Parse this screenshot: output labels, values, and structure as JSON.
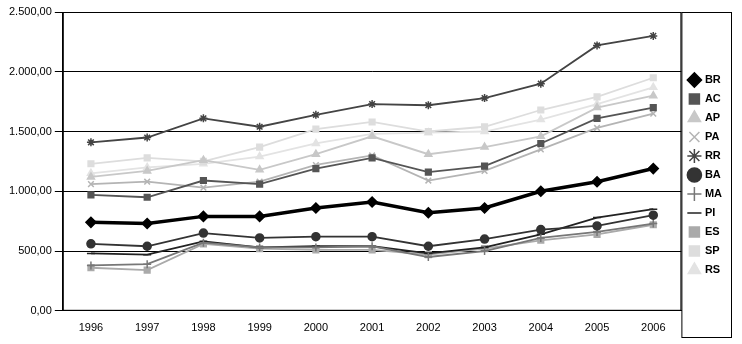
{
  "chart_data": {
    "type": "line",
    "categories": [
      "1996",
      "1997",
      "1998",
      "1999",
      "2000",
      "2001",
      "2002",
      "2003",
      "2004",
      "2005",
      "2006"
    ],
    "series": [
      {
        "name": "BR",
        "color": "#000000",
        "marker": "diamond",
        "values": [
          740,
          730,
          790,
          790,
          860,
          910,
          820,
          860,
          1000,
          1080,
          1190
        ]
      },
      {
        "name": "AC",
        "color": "#555555",
        "marker": "square",
        "values": [
          970,
          950,
          1090,
          1060,
          1190,
          1280,
          1160,
          1210,
          1400,
          1610,
          1700
        ]
      },
      {
        "name": "AP",
        "color": "#c8c8c8",
        "marker": "triangle",
        "values": [
          1120,
          1170,
          1260,
          1180,
          1310,
          1460,
          1310,
          1370,
          1460,
          1700,
          1800
        ]
      },
      {
        "name": "PA",
        "color": "#b4b4b4",
        "marker": "x",
        "values": [
          1060,
          1080,
          1030,
          1080,
          1220,
          1300,
          1090,
          1170,
          1350,
          1530,
          1650
        ]
      },
      {
        "name": "RR",
        "color": "#444444",
        "marker": "star",
        "values": [
          1410,
          1450,
          1610,
          1540,
          1640,
          1730,
          1720,
          1780,
          1900,
          2220,
          2300
        ]
      },
      {
        "name": "BA",
        "color": "#333333",
        "marker": "circle",
        "values": [
          560,
          540,
          650,
          610,
          620,
          620,
          540,
          600,
          680,
          710,
          800
        ]
      },
      {
        "name": "MA",
        "color": "#777777",
        "marker": "plus",
        "values": [
          380,
          390,
          570,
          530,
          530,
          540,
          450,
          500,
          610,
          660,
          730
        ]
      },
      {
        "name": "PI",
        "color": "#222222",
        "marker": "dash",
        "values": [
          480,
          470,
          580,
          530,
          540,
          540,
          480,
          530,
          640,
          780,
          850
        ]
      },
      {
        "name": "ES",
        "color": "#aaaaaa",
        "marker": "square",
        "values": [
          360,
          340,
          560,
          520,
          510,
          510,
          470,
          520,
          590,
          640,
          720
        ]
      },
      {
        "name": "SP",
        "color": "#dddddd",
        "marker": "square",
        "values": [
          1230,
          1280,
          1250,
          1370,
          1520,
          1580,
          1500,
          1540,
          1680,
          1790,
          1950
        ]
      },
      {
        "name": "RS",
        "color": "#e3e3e3",
        "marker": "triangle",
        "values": [
          1150,
          1200,
          1230,
          1290,
          1400,
          1480,
          1490,
          1500,
          1600,
          1730,
          1870
        ]
      }
    ],
    "ylim": [
      0,
      2500
    ],
    "yticks": [
      {
        "value": 0,
        "label": "0,00"
      },
      {
        "value": 500,
        "label": "500,00"
      },
      {
        "value": 1000,
        "label": "1.000,00"
      },
      {
        "value": 1500,
        "label": "1.500,00"
      },
      {
        "value": 2000,
        "label": "2.000,00"
      },
      {
        "value": 2500,
        "label": "2.500,00"
      }
    ],
    "grid": true,
    "legend": "right"
  }
}
